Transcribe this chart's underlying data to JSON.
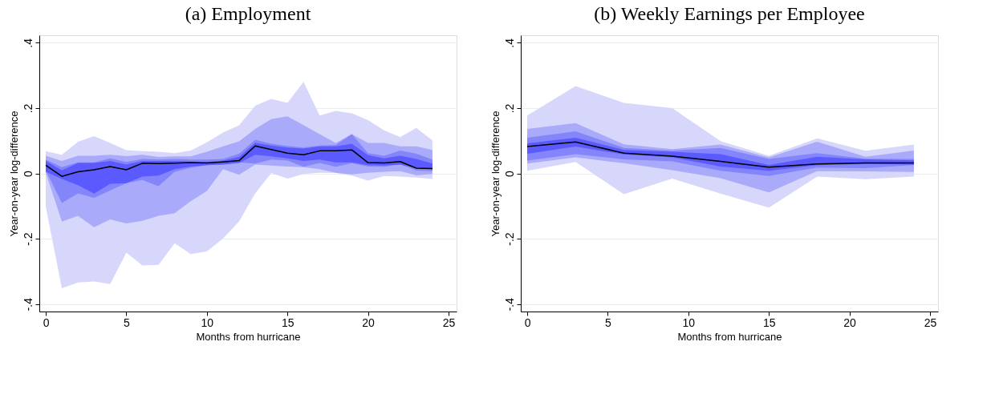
{
  "chart_data": [
    {
      "type": "line",
      "title": "(a) Employment",
      "xlabel": "Months from hurricane",
      "ylabel": "Year-on-year log-difference",
      "x": [
        0,
        1,
        2,
        3,
        4,
        5,
        6,
        7,
        8,
        9,
        10,
        11,
        12,
        13,
        14,
        15,
        16,
        17,
        18,
        19,
        20,
        21,
        22,
        23,
        24
      ],
      "xlim": [
        -0.4,
        25.5
      ],
      "xticks": [
        0,
        5,
        10,
        15,
        20,
        25
      ],
      "ylim": [
        -0.423,
        0.423
      ],
      "yticks": [
        {
          "value": -0.4,
          "label": "-.4"
        },
        {
          "value": -0.2,
          "label": "-.2"
        },
        {
          "value": 0,
          "label": "0"
        },
        {
          "value": 0.2,
          "label": ".2"
        },
        {
          "value": 0.4,
          "label": ".4"
        }
      ],
      "grid": "y",
      "legend": false,
      "series": [
        {
          "color": "#d7d7fb",
          "values": [
            null,
            null,
            null,
            null,
            null,
            null,
            null,
            null,
            null,
            null,
            null,
            null,
            null,
            null,
            null,
            null,
            null,
            null,
            null,
            null,
            null,
            null,
            null,
            null,
            null
          ],
          "upper": [
            0.068,
            0.057,
            0.097,
            0.114,
            0.093,
            0.071,
            0.068,
            0.066,
            0.062,
            0.07,
            0.095,
            0.125,
            0.147,
            0.207,
            0.228,
            0.216,
            0.28,
            0.177,
            0.191,
            0.184,
            0.163,
            0.132,
            0.111,
            0.139,
            0.101
          ],
          "lower": [
            -0.102,
            -0.352,
            -0.334,
            -0.331,
            -0.339,
            -0.243,
            -0.282,
            -0.28,
            -0.214,
            -0.247,
            -0.239,
            -0.2,
            -0.147,
            -0.061,
            0.001,
            -0.016,
            -0.002,
            0.002,
            0.001,
            -0.007,
            -0.022,
            -0.008,
            -0.01,
            -0.013,
            -0.017
          ]
        },
        {
          "color": "#aaaafb",
          "values": [
            null,
            null,
            null,
            null,
            null,
            null,
            null,
            null,
            null,
            null,
            null,
            null,
            null,
            null,
            null,
            null,
            null,
            null,
            null,
            null,
            null,
            null,
            null,
            null,
            null
          ],
          "upper": [
            0.054,
            0.038,
            0.054,
            0.054,
            0.057,
            0.053,
            0.057,
            0.05,
            0.052,
            0.052,
            0.066,
            0.083,
            0.098,
            0.136,
            0.166,
            0.175,
            0.148,
            0.12,
            0.093,
            0.12,
            0.093,
            0.093,
            0.083,
            0.083,
            0.072
          ],
          "lower": [
            0.002,
            -0.148,
            -0.13,
            -0.165,
            -0.141,
            -0.153,
            -0.145,
            -0.13,
            -0.122,
            -0.085,
            -0.054,
            0.013,
            -0.004,
            0.027,
            0.024,
            0.021,
            0.019,
            0.013,
            0.002,
            -0.003,
            0.002,
            0.005,
            0.007,
            -0.006,
            -0.002
          ]
        },
        {
          "color": "#8585fb",
          "values": [
            null,
            null,
            null,
            null,
            null,
            null,
            null,
            null,
            null,
            null,
            null,
            null,
            null,
            null,
            null,
            null,
            null,
            null,
            null,
            null,
            null,
            null,
            null,
            null,
            null
          ],
          "upper": [
            0.042,
            0.019,
            0.034,
            0.034,
            0.046,
            0.035,
            0.044,
            0.042,
            0.044,
            0.042,
            0.042,
            0.044,
            0.06,
            0.103,
            0.091,
            0.084,
            0.079,
            0.085,
            0.087,
            0.12,
            0.062,
            0.054,
            0.07,
            0.06,
            0.042
          ],
          "lower": [
            0.009,
            -0.091,
            -0.061,
            -0.075,
            -0.052,
            -0.03,
            -0.02,
            -0.039,
            0.005,
            0.017,
            0.025,
            0.03,
            0.034,
            0.03,
            0.042,
            0.039,
            0.02,
            0.032,
            0.02,
            0.031,
            0.021,
            0.02,
            0.028,
            0.009,
            0.007
          ]
        },
        {
          "color": "#5a5aff",
          "values": [
            null,
            null,
            null,
            null,
            null,
            null,
            null,
            null,
            null,
            null,
            null,
            null,
            null,
            null,
            null,
            null,
            null,
            null,
            null,
            null,
            null,
            null,
            null,
            null,
            null
          ],
          "upper": [
            0.038,
            0.009,
            0.032,
            0.032,
            0.038,
            0.027,
            0.038,
            0.038,
            0.038,
            0.036,
            0.035,
            0.039,
            0.05,
            0.093,
            0.085,
            0.079,
            0.076,
            0.083,
            0.083,
            0.091,
            0.056,
            0.046,
            0.054,
            0.044,
            0.03
          ],
          "lower": [
            0.005,
            -0.017,
            -0.036,
            -0.062,
            -0.032,
            -0.03,
            -0.01,
            -0.007,
            0.013,
            0.021,
            0.025,
            0.027,
            0.032,
            0.057,
            0.052,
            0.046,
            0.038,
            0.042,
            0.034,
            0.034,
            0.025,
            0.024,
            0.027,
            0.016,
            0.013
          ]
        },
        {
          "color": "#000000",
          "values": [
            0.025,
            -0.009,
            0.005,
            0.011,
            0.021,
            0.011,
            0.031,
            0.03,
            0.031,
            0.033,
            0.032,
            0.035,
            0.039,
            0.084,
            0.073,
            0.062,
            0.057,
            0.069,
            0.069,
            0.072,
            0.033,
            0.032,
            0.036,
            0.016,
            0.015
          ]
        }
      ]
    },
    {
      "type": "line",
      "title": "(b) Weekly Earnings per Employee",
      "xlabel": "Months from hurricane",
      "ylabel": "Year-on-year log-difference",
      "x": [
        0,
        3,
        6,
        9,
        12,
        15,
        18,
        21,
        24
      ],
      "xlim": [
        -0.4,
        25.5
      ],
      "xticks": [
        0,
        5,
        10,
        15,
        20,
        25
      ],
      "ylim": [
        -0.423,
        0.423
      ],
      "yticks": [
        {
          "value": -0.4,
          "label": "-.4"
        },
        {
          "value": -0.2,
          "label": "-.2"
        },
        {
          "value": 0,
          "label": "0"
        },
        {
          "value": 0.2,
          "label": ".2"
        },
        {
          "value": 0.4,
          "label": ".4"
        }
      ],
      "grid": "y",
      "legend": false,
      "series": [
        {
          "color": "#d7d7fb",
          "values": [
            null,
            null,
            null,
            null,
            null,
            null,
            null,
            null,
            null
          ],
          "upper": [
            0.177,
            0.267,
            0.216,
            0.2,
            0.099,
            0.054,
            0.107,
            0.069,
            0.088
          ],
          "lower": [
            0.008,
            0.035,
            -0.064,
            -0.016,
            -0.062,
            -0.105,
            -0.01,
            -0.018,
            -0.01
          ]
        },
        {
          "color": "#aaaafb",
          "values": [
            null,
            null,
            null,
            null,
            null,
            null,
            null,
            null,
            null
          ],
          "upper": [
            0.136,
            0.154,
            0.089,
            0.074,
            0.088,
            0.049,
            0.097,
            0.051,
            0.07
          ],
          "lower": [
            0.03,
            0.049,
            0.031,
            0.01,
            -0.015,
            -0.058,
            0.007,
            0.006,
            0.004
          ]
        },
        {
          "color": "#8585fb",
          "values": [
            null,
            null,
            null,
            null,
            null,
            null,
            null,
            null,
            null
          ],
          "upper": [
            0.109,
            0.129,
            0.078,
            0.07,
            0.078,
            0.044,
            0.062,
            0.045,
            0.044
          ],
          "lower": [
            0.039,
            0.059,
            0.043,
            0.037,
            0.008,
            -0.008,
            0.018,
            0.016,
            0.025
          ]
        },
        {
          "color": "#5a5aff",
          "values": [
            null,
            null,
            null,
            null,
            null,
            null,
            null,
            null,
            null
          ],
          "upper": [
            0.092,
            0.109,
            0.072,
            0.066,
            0.059,
            0.026,
            0.051,
            0.043,
            0.04
          ],
          "lower": [
            0.06,
            0.082,
            0.058,
            0.049,
            0.021,
            0.008,
            0.025,
            0.029,
            0.027
          ]
        },
        {
          "color": "#000000",
          "values": [
            0.082,
            0.096,
            0.062,
            0.053,
            0.037,
            0.019,
            0.029,
            0.032,
            0.032
          ]
        }
      ]
    }
  ]
}
